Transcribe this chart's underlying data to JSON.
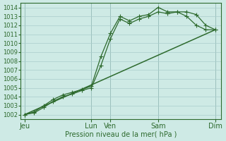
{
  "background_color": "#ceeae5",
  "grid_color": "#aacccc",
  "line_color": "#2d6a2d",
  "title": "Pression niveau de la mer( hPa )",
  "ylim": [
    1001.5,
    1014.5
  ],
  "yticks": [
    1002,
    1003,
    1004,
    1005,
    1006,
    1007,
    1008,
    1009,
    1010,
    1011,
    1012,
    1013,
    1014
  ],
  "xlim": [
    -0.2,
    10.3
  ],
  "x_day_labels": [
    {
      "label": "Jeu",
      "x": 0
    },
    {
      "label": "Lun",
      "x": 3.5
    },
    {
      "label": "Ven",
      "x": 4.5
    },
    {
      "label": "Sam",
      "x": 7.0
    },
    {
      "label": "Dim",
      "x": 10.0
    }
  ],
  "x_vlines": [
    0,
    3.5,
    4.5,
    7.0,
    10.0
  ],
  "series": [
    {
      "x": [
        0,
        0.5,
        1.0,
        1.5,
        2.0,
        2.5,
        3.0,
        3.5,
        4.0,
        4.5,
        5.0,
        5.5,
        6.0,
        6.5,
        7.0,
        7.5,
        8.0,
        8.5,
        9.0,
        9.5,
        10.0
      ],
      "y": [
        1002.0,
        1002.3,
        1003.0,
        1003.7,
        1004.2,
        1004.5,
        1004.8,
        1005.2,
        1008.5,
        1011.1,
        1013.0,
        1012.5,
        1013.0,
        1013.2,
        1014.0,
        1013.5,
        1013.5,
        1013.5,
        1013.2,
        1012.0,
        1011.5
      ],
      "marker": "+",
      "markersize": 4,
      "linewidth": 0.9,
      "linestyle": "-"
    },
    {
      "x": [
        0,
        0.5,
        1.0,
        1.5,
        2.0,
        2.5,
        3.0,
        3.5,
        4.0,
        4.5,
        5.0,
        5.5,
        6.0,
        6.5,
        7.0,
        7.5,
        8.0,
        8.5,
        9.0,
        9.5,
        10.0
      ],
      "y": [
        1002.0,
        1002.2,
        1002.8,
        1003.5,
        1004.0,
        1004.3,
        1004.7,
        1005.0,
        1007.5,
        1010.5,
        1012.7,
        1012.2,
        1012.7,
        1013.0,
        1013.5,
        1013.3,
        1013.5,
        1013.0,
        1012.0,
        1011.5,
        1011.5
      ],
      "marker": "+",
      "markersize": 4,
      "linewidth": 0.9,
      "linestyle": "-"
    },
    {
      "x": [
        0,
        10.0
      ],
      "y": [
        1002.0,
        1011.5
      ],
      "marker": null,
      "markersize": 0,
      "linewidth": 1.1,
      "linestyle": "-"
    }
  ],
  "xlabel_fontsize": 7,
  "tick_fontsize": 6,
  "title_fontsize": 7
}
